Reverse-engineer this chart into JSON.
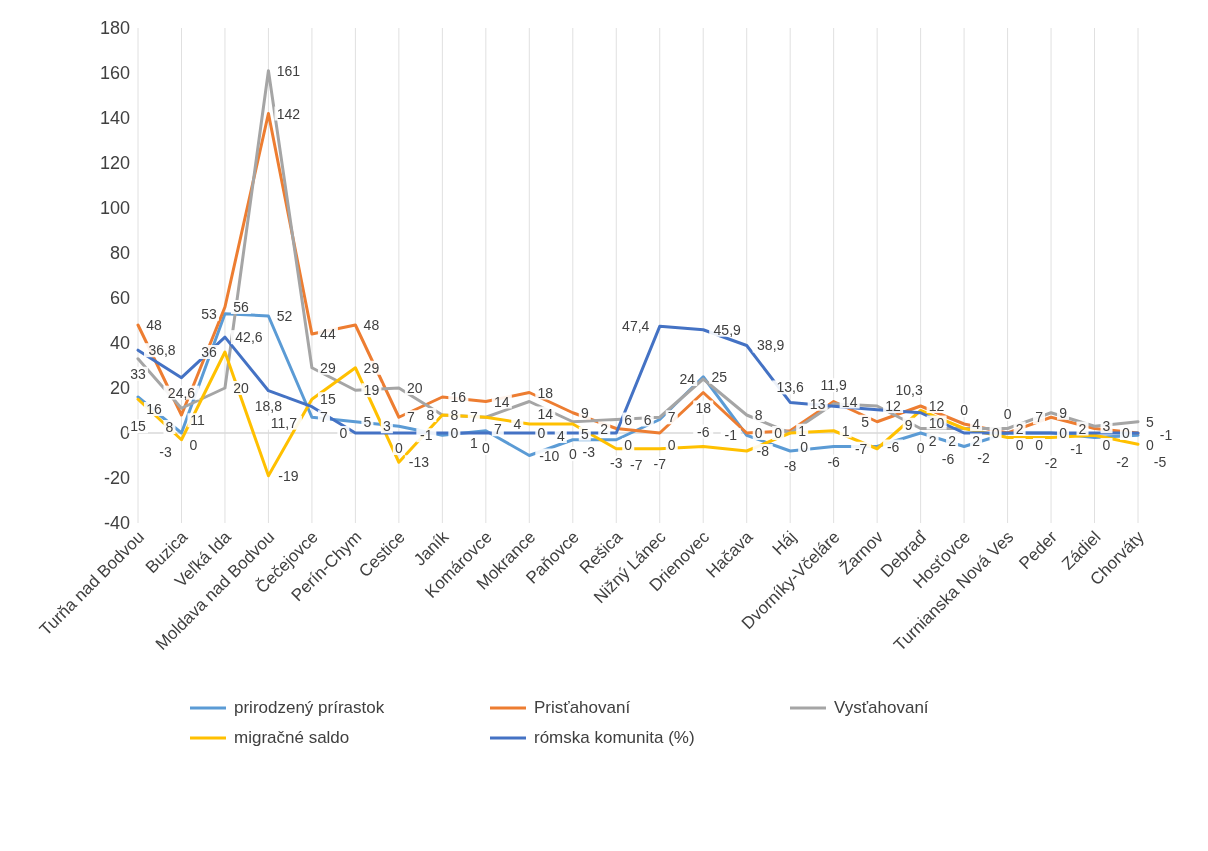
{
  "chart_data": {
    "type": "line",
    "categories": [
      "Turňa nad Bodvou",
      "Buzica",
      "Veľká Ida",
      "Moldava nad Bodvou",
      "Čečejovce",
      "Perín-Chym",
      "Cestice",
      "Janík",
      "Komárovce",
      "Mokrance",
      "Paňovce",
      "Rešica",
      "Nižný Lánec",
      "Drienovec",
      "Hačava",
      "Háj",
      "Dvorníky-Včeláre",
      "Žarnov",
      "Debraď",
      "Hosťovce",
      "Turnianska Nová Ves",
      "Peder",
      "Zádiel",
      "Chorváty"
    ],
    "series": [
      {
        "name": "prirodzený prírastok",
        "color": "#5b9bd5",
        "values": [
          16,
          0,
          53,
          52,
          7,
          5,
          3,
          -1,
          1,
          -10,
          -3,
          -3,
          6,
          25,
          -1,
          -8,
          -6,
          -6,
          0,
          -6,
          0,
          0,
          -2,
          -1
        ],
        "value_labels": [
          "16",
          "0",
          "53",
          "52",
          "7",
          "5",
          "3",
          "-1",
          "1",
          "-10",
          "-3",
          "-3",
          "6",
          "25",
          "-1",
          "-8",
          "-6",
          "-6",
          "0",
          "-6",
          "0",
          "0",
          "-2",
          "-1"
        ]
      },
      {
        "name": "Prisťahovaní",
        "color": "#ed7d31",
        "values": [
          48,
          8,
          56,
          142,
          44,
          48,
          7,
          16,
          14,
          18,
          9,
          2,
          0,
          18,
          0,
          1,
          14,
          5,
          12,
          4,
          0,
          7,
          2,
          0
        ],
        "value_labels": [
          "48",
          "8",
          "56",
          "142",
          "44",
          "48",
          "7",
          "16",
          "14",
          "18",
          "9",
          "2",
          "0",
          "18",
          "0",
          "1",
          "14",
          "5",
          "12",
          "4",
          "0",
          "7",
          "2",
          "0"
        ]
      },
      {
        "name": "Vysťahovaní",
        "color": "#a5a5a5",
        "values": [
          33,
          11,
          20,
          161,
          29,
          19,
          20,
          8,
          7,
          14,
          5,
          6,
          7,
          24,
          8,
          0,
          13,
          12,
          2,
          2,
          2,
          9,
          3,
          5
        ],
        "value_labels": [
          "33",
          "11",
          "20",
          "161",
          "29",
          "19",
          "20",
          "8",
          "7",
          "14",
          "5",
          "6",
          "7",
          "24",
          "8",
          "0",
          "13",
          "12",
          "2",
          "2",
          "2",
          "9",
          "3",
          "5"
        ]
      },
      {
        "name": "migračné saldo",
        "color": "#ffc000",
        "values": [
          15,
          -3,
          36,
          -19,
          15,
          29,
          -13,
          8,
          7,
          4,
          4,
          -7,
          -7,
          -6,
          -8,
          0,
          1,
          -7,
          10,
          2,
          -2,
          -2,
          -1,
          -5
        ],
        "value_labels": [
          "15",
          "-3",
          "36",
          "-19",
          "15",
          "29",
          "-13",
          "8",
          "7",
          "4",
          "4",
          "-7",
          "-7",
          "-6",
          "-8",
          "0",
          "1",
          "-7",
          "10",
          "2",
          "-2",
          "-2",
          "-1",
          "-5"
        ]
      },
      {
        "name": "rómska komunita (%)",
        "color": "#4472c4",
        "values": [
          36.8,
          24.6,
          42.6,
          18.8,
          11.7,
          0,
          0,
          0,
          0,
          0,
          0,
          0,
          47.4,
          45.9,
          38.9,
          13.6,
          11.9,
          10.3,
          9,
          0,
          0,
          0,
          0,
          0
        ],
        "value_labels": [
          "36,8",
          "24,6",
          "42,6",
          "18,8",
          "11,7",
          "0",
          "0",
          "0",
          "0",
          "0",
          "0",
          "0",
          "47,4",
          "45,9",
          "38,9",
          "13,6",
          "11,9",
          "10,3",
          "9",
          "0",
          "0",
          "0",
          "0",
          "0"
        ]
      }
    ],
    "ylim": [
      -40,
      180
    ],
    "yticks": [
      -40,
      -20,
      0,
      20,
      40,
      60,
      80,
      100,
      120,
      140,
      160,
      180
    ],
    "grid": "x",
    "legend": "bottom",
    "marker": "none",
    "line_style": "solid"
  }
}
